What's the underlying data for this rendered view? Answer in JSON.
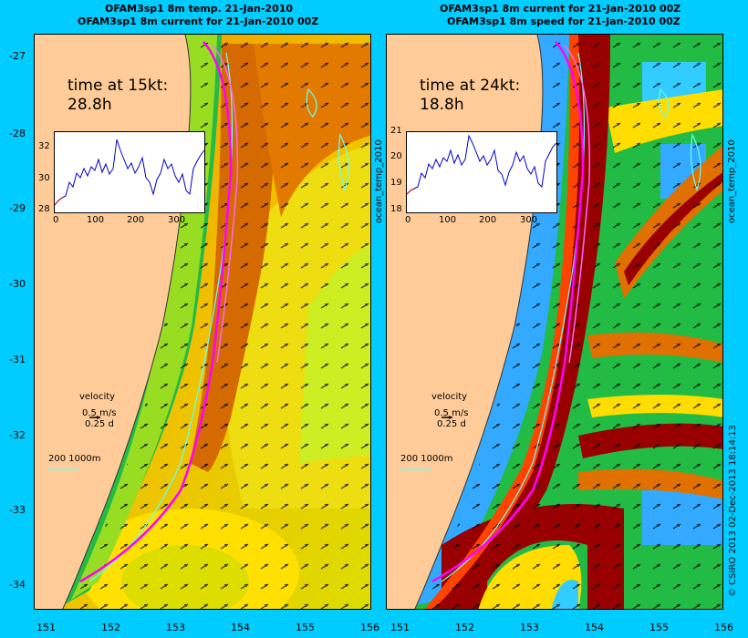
{
  "left_panel": {
    "title_line1": "OFAM3sp1 8m temp. 21-Jan-2010",
    "title_line2": "OFAM3sp1 8m current for 21-Jan-2010 00Z",
    "time_label": "time at 15kt:",
    "time_value": "28.8h",
    "side_label": "ocean_temp_2010",
    "inset": {
      "y_ticks": [
        "32",
        "30",
        "28"
      ],
      "x_ticks": [
        "0",
        "100",
        "200",
        "300"
      ]
    }
  },
  "right_panel": {
    "title_line1": "OFAM3sp1 8m current for 21-Jan-2010 00Z",
    "title_line2": "OFAM3sp1 8m speed for 21-Jan-2010 00Z",
    "time_label": "time at 24kt:",
    "time_value": "18.8h",
    "side_label": "ocean_temp_2010",
    "inset": {
      "y_ticks": [
        "21",
        "20",
        "19",
        "18"
      ],
      "x_ticks": [
        "0",
        "100",
        "200",
        "300"
      ]
    }
  },
  "legend": {
    "velocity": "velocity",
    "speed": "0.5 m/s",
    "days": "0.25 d",
    "isobaths": "200  1000m"
  },
  "axes": {
    "lat_ticks": [
      "-27",
      "-28",
      "-29",
      "-30",
      "-31",
      "-32",
      "-33",
      "-34"
    ],
    "lon_ticks": [
      "151",
      "152",
      "153",
      "154",
      "155",
      "156"
    ]
  },
  "credit": "© CSIRO 2013   02-Dec-2013 18:14:13",
  "colors": {
    "background": "#00ccff",
    "land": "#ffcc99",
    "route": "#ff00ff",
    "isobath": "#66ffff",
    "warm": "#e07000",
    "cool": "#ccff00",
    "fast": "#990000",
    "slow": "#33aaff"
  }
}
